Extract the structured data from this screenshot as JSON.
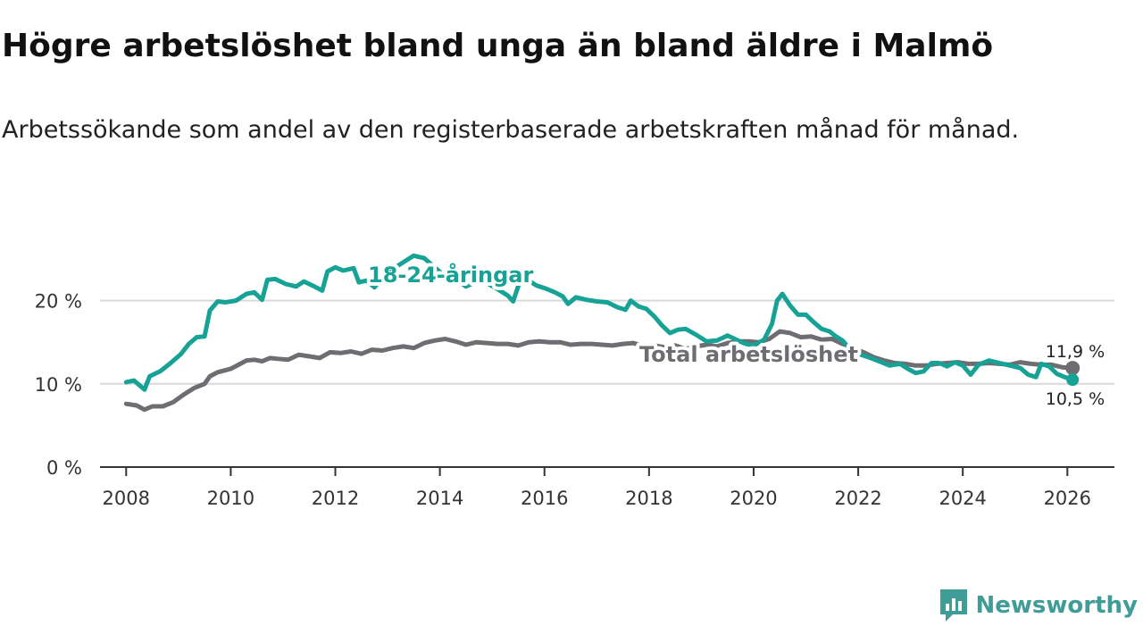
{
  "chart_data": {
    "type": "line",
    "title": "Högre arbetslöshet bland unga än bland äldre i Malmö",
    "subtitle": "Arbetssökande som andel av den registerbaserade arbetskraften månad för månad.",
    "xlabel": "",
    "ylabel": "",
    "xlim": [
      2007.5,
      2026.9
    ],
    "ylim": [
      0,
      25
    ],
    "x_ticks": [
      {
        "value": 2008,
        "label": "2008"
      },
      {
        "value": 2010,
        "label": "2010"
      },
      {
        "value": 2012,
        "label": "2012"
      },
      {
        "value": 2014,
        "label": "2014"
      },
      {
        "value": 2016,
        "label": "2016"
      },
      {
        "value": 2018,
        "label": "2018"
      },
      {
        "value": 2020,
        "label": "2020"
      },
      {
        "value": 2022,
        "label": "2022"
      },
      {
        "value": 2024,
        "label": "2024"
      },
      {
        "value": 2026,
        "label": "2026"
      }
    ],
    "y_ticks": [
      {
        "value": 0,
        "label": "0 %"
      },
      {
        "value": 10,
        "label": "10 %"
      },
      {
        "value": 20,
        "label": "20 %"
      }
    ],
    "grid": true,
    "series": [
      {
        "name": "Total arbetslöshet",
        "label": "Total arbetslöshet",
        "color": "#6f6c72",
        "end_label": "11,9 %",
        "points": [
          [
            2008.0,
            7.6
          ],
          [
            2008.2,
            7.4
          ],
          [
            2008.35,
            6.9
          ],
          [
            2008.5,
            7.3
          ],
          [
            2008.7,
            7.3
          ],
          [
            2008.9,
            7.8
          ],
          [
            2009.1,
            8.7
          ],
          [
            2009.3,
            9.5
          ],
          [
            2009.5,
            10.0
          ],
          [
            2009.6,
            10.9
          ],
          [
            2009.75,
            11.4
          ],
          [
            2010.0,
            11.8
          ],
          [
            2010.15,
            12.3
          ],
          [
            2010.3,
            12.8
          ],
          [
            2010.45,
            12.9
          ],
          [
            2010.6,
            12.7
          ],
          [
            2010.75,
            13.1
          ],
          [
            2010.9,
            13.0
          ],
          [
            2011.1,
            12.9
          ],
          [
            2011.3,
            13.5
          ],
          [
            2011.5,
            13.3
          ],
          [
            2011.7,
            13.1
          ],
          [
            2011.9,
            13.8
          ],
          [
            2012.1,
            13.7
          ],
          [
            2012.3,
            13.9
          ],
          [
            2012.5,
            13.6
          ],
          [
            2012.7,
            14.1
          ],
          [
            2012.9,
            14.0
          ],
          [
            2013.1,
            14.3
          ],
          [
            2013.3,
            14.5
          ],
          [
            2013.5,
            14.3
          ],
          [
            2013.7,
            14.9
          ],
          [
            2013.9,
            15.2
          ],
          [
            2014.1,
            15.4
          ],
          [
            2014.3,
            15.1
          ],
          [
            2014.5,
            14.7
          ],
          [
            2014.7,
            15.0
          ],
          [
            2014.9,
            14.9
          ],
          [
            2015.1,
            14.8
          ],
          [
            2015.3,
            14.8
          ],
          [
            2015.5,
            14.6
          ],
          [
            2015.7,
            15.0
          ],
          [
            2015.9,
            15.1
          ],
          [
            2016.1,
            15.0
          ],
          [
            2016.3,
            15.0
          ],
          [
            2016.5,
            14.7
          ],
          [
            2016.7,
            14.8
          ],
          [
            2016.9,
            14.8
          ],
          [
            2017.1,
            14.7
          ],
          [
            2017.3,
            14.6
          ],
          [
            2017.5,
            14.8
          ],
          [
            2017.7,
            14.9
          ],
          [
            2017.9,
            14.5
          ],
          [
            2018.1,
            14.6
          ],
          [
            2018.3,
            14.4
          ],
          [
            2018.5,
            14.6
          ],
          [
            2018.7,
            14.2
          ],
          [
            2018.9,
            14.5
          ],
          [
            2019.1,
            14.7
          ],
          [
            2019.3,
            14.5
          ],
          [
            2019.5,
            14.9
          ],
          [
            2019.7,
            15.1
          ],
          [
            2019.9,
            15.1
          ],
          [
            2020.1,
            15.0
          ],
          [
            2020.3,
            15.4
          ],
          [
            2020.5,
            16.3
          ],
          [
            2020.7,
            16.1
          ],
          [
            2020.9,
            15.6
          ],
          [
            2021.1,
            15.7
          ],
          [
            2021.3,
            15.3
          ],
          [
            2021.5,
            15.4
          ],
          [
            2021.7,
            14.8
          ],
          [
            2021.9,
            14.3
          ],
          [
            2022.1,
            13.8
          ],
          [
            2022.3,
            13.2
          ],
          [
            2022.5,
            12.8
          ],
          [
            2022.7,
            12.5
          ],
          [
            2022.9,
            12.4
          ],
          [
            2023.1,
            12.2
          ],
          [
            2023.3,
            12.2
          ],
          [
            2023.5,
            12.4
          ],
          [
            2023.7,
            12.5
          ],
          [
            2023.9,
            12.6
          ],
          [
            2024.1,
            12.4
          ],
          [
            2024.3,
            12.4
          ],
          [
            2024.5,
            12.5
          ],
          [
            2024.7,
            12.4
          ],
          [
            2024.9,
            12.3
          ],
          [
            2025.1,
            12.6
          ],
          [
            2025.3,
            12.4
          ],
          [
            2025.5,
            12.3
          ],
          [
            2025.7,
            12.3
          ],
          [
            2025.9,
            12.0
          ],
          [
            2026.1,
            11.9
          ]
        ]
      },
      {
        "name": "18-24-åringar",
        "label": "18-24-åringar",
        "color": "#16a295",
        "end_label": "10,5 %",
        "points": [
          [
            2008.0,
            10.2
          ],
          [
            2008.15,
            10.4
          ],
          [
            2008.35,
            9.3
          ],
          [
            2008.45,
            10.9
          ],
          [
            2008.65,
            11.5
          ],
          [
            2008.85,
            12.5
          ],
          [
            2009.05,
            13.6
          ],
          [
            2009.2,
            14.8
          ],
          [
            2009.35,
            15.6
          ],
          [
            2009.5,
            15.7
          ],
          [
            2009.6,
            18.8
          ],
          [
            2009.75,
            19.9
          ],
          [
            2009.9,
            19.8
          ],
          [
            2010.1,
            20.0
          ],
          [
            2010.3,
            20.8
          ],
          [
            2010.45,
            21.0
          ],
          [
            2010.6,
            20.1
          ],
          [
            2010.7,
            22.5
          ],
          [
            2010.85,
            22.6
          ],
          [
            2011.05,
            22.0
          ],
          [
            2011.25,
            21.7
          ],
          [
            2011.4,
            22.3
          ],
          [
            2011.6,
            21.7
          ],
          [
            2011.75,
            21.2
          ],
          [
            2011.85,
            23.5
          ],
          [
            2012.0,
            24.0
          ],
          [
            2012.15,
            23.6
          ],
          [
            2012.35,
            23.9
          ],
          [
            2012.45,
            22.2
          ],
          [
            2012.6,
            22.4
          ],
          [
            2012.75,
            21.6
          ],
          [
            2012.9,
            22.8
          ],
          [
            2013.1,
            23.8
          ],
          [
            2013.3,
            24.6
          ],
          [
            2013.5,
            25.4
          ],
          [
            2013.7,
            25.1
          ],
          [
            2013.9,
            24.0
          ],
          [
            2014.1,
            22.9
          ],
          [
            2014.3,
            22.6
          ],
          [
            2014.5,
            21.7
          ],
          [
            2014.7,
            22.3
          ],
          [
            2014.9,
            22.1
          ],
          [
            2015.1,
            21.4
          ],
          [
            2015.3,
            20.6
          ],
          [
            2015.4,
            19.9
          ],
          [
            2015.55,
            22.7
          ],
          [
            2015.7,
            22.4
          ],
          [
            2015.85,
            21.8
          ],
          [
            2016.0,
            21.5
          ],
          [
            2016.2,
            21.0
          ],
          [
            2016.35,
            20.5
          ],
          [
            2016.45,
            19.6
          ],
          [
            2016.6,
            20.4
          ],
          [
            2016.8,
            20.1
          ],
          [
            2017.0,
            19.9
          ],
          [
            2017.2,
            19.8
          ],
          [
            2017.4,
            19.2
          ],
          [
            2017.55,
            18.9
          ],
          [
            2017.65,
            20.0
          ],
          [
            2017.8,
            19.3
          ],
          [
            2017.95,
            19.0
          ],
          [
            2018.1,
            18.1
          ],
          [
            2018.25,
            17.0
          ],
          [
            2018.4,
            16.1
          ],
          [
            2018.55,
            16.5
          ],
          [
            2018.7,
            16.6
          ],
          [
            2018.9,
            15.9
          ],
          [
            2019.1,
            15.1
          ],
          [
            2019.3,
            15.2
          ],
          [
            2019.5,
            15.8
          ],
          [
            2019.7,
            15.2
          ],
          [
            2019.85,
            14.8
          ],
          [
            2020.0,
            14.6
          ],
          [
            2020.2,
            15.3
          ],
          [
            2020.35,
            17.2
          ],
          [
            2020.45,
            20.0
          ],
          [
            2020.55,
            20.8
          ],
          [
            2020.7,
            19.4
          ],
          [
            2020.85,
            18.3
          ],
          [
            2021.0,
            18.3
          ],
          [
            2021.15,
            17.4
          ],
          [
            2021.3,
            16.6
          ],
          [
            2021.45,
            16.3
          ],
          [
            2021.55,
            15.8
          ],
          [
            2021.7,
            15.2
          ],
          [
            2021.85,
            14.1
          ],
          [
            2022.0,
            13.6
          ],
          [
            2022.2,
            13.2
          ],
          [
            2022.4,
            12.7
          ],
          [
            2022.6,
            12.2
          ],
          [
            2022.8,
            12.4
          ],
          [
            2022.95,
            11.8
          ],
          [
            2023.1,
            11.3
          ],
          [
            2023.25,
            11.5
          ],
          [
            2023.4,
            12.5
          ],
          [
            2023.55,
            12.5
          ],
          [
            2023.7,
            12.1
          ],
          [
            2023.85,
            12.6
          ],
          [
            2024.0,
            12.2
          ],
          [
            2024.15,
            11.1
          ],
          [
            2024.3,
            12.3
          ],
          [
            2024.5,
            12.8
          ],
          [
            2024.7,
            12.5
          ],
          [
            2024.9,
            12.2
          ],
          [
            2025.1,
            11.9
          ],
          [
            2025.25,
            11.1
          ],
          [
            2025.4,
            10.8
          ],
          [
            2025.5,
            12.4
          ],
          [
            2025.65,
            12.1
          ],
          [
            2025.8,
            11.2
          ],
          [
            2025.95,
            10.8
          ],
          [
            2026.1,
            10.5
          ]
        ]
      }
    ]
  },
  "brand": {
    "name": "Newsworthy",
    "color": "#3f9c97"
  }
}
